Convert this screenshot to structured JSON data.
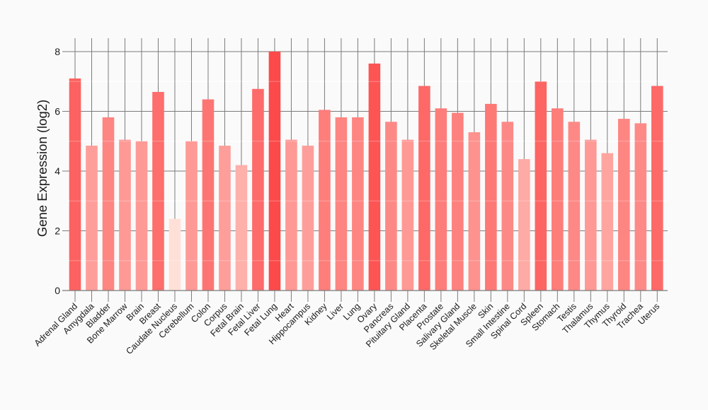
{
  "chart_data": {
    "type": "bar",
    "title": "",
    "xlabel": "",
    "ylabel": "Gene Expression (log2)",
    "categories": [
      "Adrenal Gland",
      "Amygdala",
      "Bladder",
      "Bone Marrow",
      "Brain",
      "Breast",
      "Caudate Nucleus",
      "Cerebellum",
      "Colon",
      "Corpus",
      "Fetal Brain",
      "Fetal Liver",
      "Fetal Lung",
      "Heart",
      "Hippocampus",
      "Kidney",
      "Liver",
      "Lung",
      "Ovary",
      "Pancreas",
      "Pituitary Gland",
      "Placenta",
      "Prostate",
      "Salivary Gland",
      "Skeletal Muscle",
      "Skin",
      "Small Intestine",
      "Spinal Cord",
      "Spleen",
      "Stomach",
      "Testis",
      "Thalamus",
      "Thymus",
      "Thyroid",
      "Trachea",
      "Uterus"
    ],
    "values": [
      7.1,
      4.85,
      5.8,
      5.05,
      5.0,
      6.65,
      2.4,
      5.0,
      6.4,
      4.85,
      4.2,
      6.75,
      8.0,
      5.05,
      4.85,
      6.05,
      5.8,
      5.8,
      7.6,
      5.65,
      5.05,
      6.85,
      6.1,
      5.95,
      5.3,
      6.25,
      5.65,
      4.4,
      7.0,
      6.1,
      5.65,
      5.05,
      4.6,
      5.75,
      5.6,
      6.85
    ],
    "yticks": [
      0,
      2,
      4,
      6,
      8
    ],
    "minor_yticks": [
      1,
      3,
      5,
      7
    ],
    "ylim": [
      0,
      8.45
    ],
    "grid": true,
    "legend": "none",
    "bar_color_scale": {
      "low": "#FFE0D8",
      "high": "#FC4A4A",
      "domain": [
        2.4,
        8.0
      ]
    },
    "colors": {
      "background": "#FAFAFA",
      "grid": "#7B7B7B",
      "axis": "#7B7B7B",
      "minor_grid": "#FFFFFF",
      "text": "#1A1A1A"
    }
  }
}
